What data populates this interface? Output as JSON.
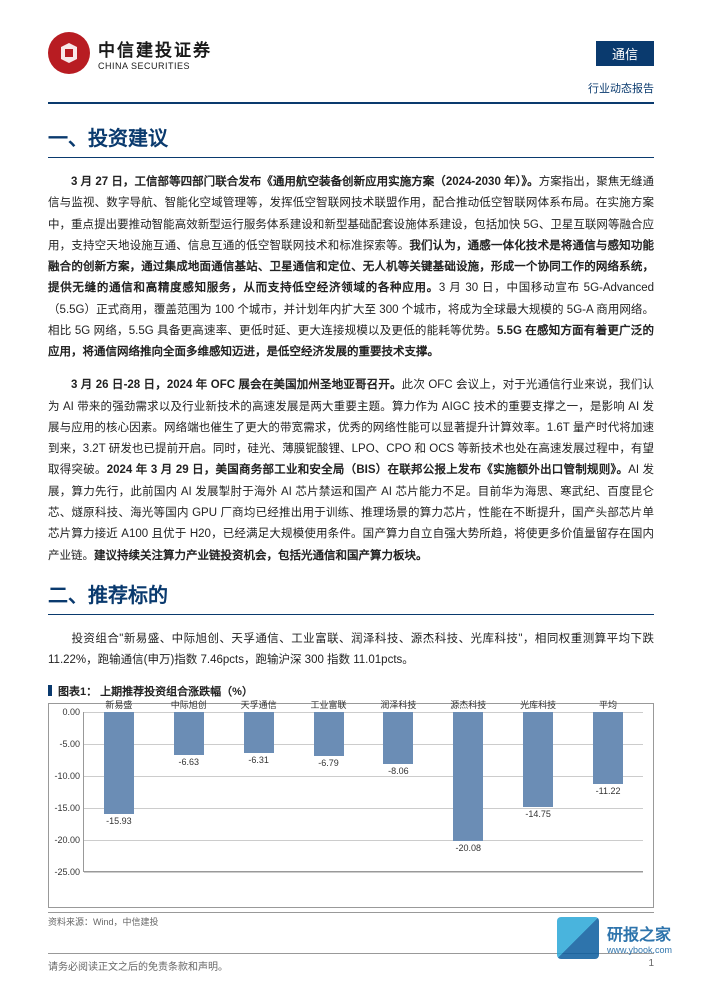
{
  "header": {
    "logo_cn": "中信建投证券",
    "logo_en": "CHINA SECURITIES",
    "tag": "通信",
    "subtitle": "行业动态报告"
  },
  "section1": {
    "title": "一、投资建议",
    "p1_lead": "3 月 27 日，工信部等四部门联合发布《通用航空装备创新应用实施方案（2024-2030 年）》。",
    "p1_body": "方案指出，聚焦无缝通信与监视、数字导航、智能化空域管理等，发挥低空智联网技术联盟作用，配合推动低空智联网体系布局。在实施方案中，重点提出要推动智能高效新型运行服务体系建设和新型基础配套设施体系建设，包括加快 5G、卫星互联网等融合应用，支持空天地设施互通、信息互通的低空智联网技术和标准探索等。",
    "p1_bold1": "我们认为，通感一体化技术是将通信与感知功能融合的创新方案，通过集成地面通信基站、卫星通信和定位、无人机等关键基础设施，形成一个协同工作的网络系统，提供无缝的通信和高精度感知服务，从而支持低空经济领域的各种应用。",
    "p1_body2": "3 月 30 日，中国移动宣布 5G-Advanced（5.5G）正式商用，覆盖范围为 100 个城市，并计划年内扩大至 300 个城市，将成为全球最大规模的 5G-A 商用网络。相比 5G 网络，5.5G 具备更高速率、更低时延、更大连接规模以及更低的能耗等优势。",
    "p1_bold2": "5.5G 在感知方面有着更广泛的应用，将通信网络推向全面多维感知迈进，是低空经济发展的重要技术支撑。",
    "p2_lead": "3 月 26 日-28 日，2024 年 OFC 展会在美国加州圣地亚哥召开。",
    "p2_body": "此次 OFC 会议上，对于光通信行业来说，我们认为 AI 带来的强劲需求以及行业新技术的高速发展是两大重要主题。算力作为 AIGC 技术的重要支撑之一，是影响 AI 发展与应用的核心因素。网络端也催生了更大的带宽需求，优秀的网络性能可以显著提升计算效率。1.6T 量产时代将加速到来，3.2T 研发也已提前开启。同时，硅光、薄膜铌酸锂、LPO、CPO 和 OCS 等新技术也处在高速发展过程中，有望取得突破。",
    "p2_bold1": "2024 年 3 月 29 日，美国商务部工业和安全局（BIS）在联邦公报上发布《实施额外出口管制规则》。",
    "p2_body2": "AI 发展，算力先行，此前国内 AI 发展掣肘于海外 AI 芯片禁运和国产 AI 芯片能力不足。目前华为海思、寒武纪、百度昆仑芯、燧原科技、海光等国内 GPU 厂商均已经推出用于训练、推理场景的算力芯片，性能在不断提升，国产头部芯片单芯片算力接近 A100 且优于 H20，已经满足大规模使用条件。国产算力自立自强大势所趋，将使更多价值量留存在国内产业链。",
    "p2_bold2": "建议持续关注算力产业链投资机会，包括光通信和国产算力板块。"
  },
  "section2": {
    "title": "二、推荐标的",
    "p1": "投资组合\"新易盛、中际旭创、天孚通信、工业富联、润泽科技、源杰科技、光库科技\"，相同权重测算平均下跌 11.22%，跑输通信(申万)指数 7.46pcts，跑输沪深 300 指数 11.01pcts。"
  },
  "chart": {
    "title": "图表1：   上期推荐投资组合涨跌幅（%）",
    "categories": [
      "新易盛",
      "中际旭创",
      "天孚通信",
      "工业富联",
      "润泽科技",
      "源杰科技",
      "光库科技",
      "平均"
    ],
    "values": [
      -15.93,
      -6.63,
      -6.31,
      -6.79,
      -8.06,
      -20.08,
      -14.75,
      -11.22
    ],
    "ylim": [
      -25,
      0
    ],
    "ytick_step": 5,
    "bar_color": "#6b8db5",
    "source": "资料来源：Wind，中信建投"
  },
  "footer": {
    "disclaimer": "请务必阅读正文之后的免责条款和声明。",
    "page": "1"
  },
  "watermark": {
    "cn": "研报之家",
    "en": "www.ybook.com"
  }
}
